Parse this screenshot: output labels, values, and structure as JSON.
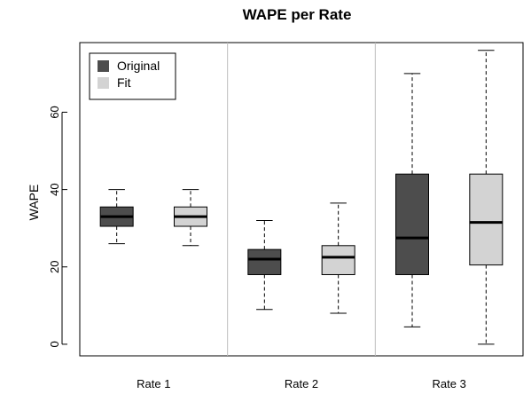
{
  "chart_data": {
    "type": "boxplot",
    "title": "WAPE per Rate",
    "ylabel": "WAPE",
    "xlabel": "",
    "categories": [
      "Rate 1",
      "Rate 2",
      "Rate 3"
    ],
    "yticks": [
      0,
      20,
      40,
      60
    ],
    "ylim": [
      -3,
      78
    ],
    "grid": false,
    "legend_position": "top-left",
    "series": [
      {
        "name": "Original",
        "color": "#4d4d4d",
        "boxes": [
          {
            "min": 26,
            "q1": 30.5,
            "median": 33,
            "q3": 35.5,
            "max": 40
          },
          {
            "min": 9,
            "q1": 18,
            "median": 22,
            "q3": 24.5,
            "max": 32
          },
          {
            "min": 4.5,
            "q1": 18,
            "median": 27.5,
            "q3": 44,
            "max": 70
          }
        ]
      },
      {
        "name": "Fit",
        "color": "#d3d3d3",
        "boxes": [
          {
            "min": 25.5,
            "q1": 30.5,
            "median": 33,
            "q3": 35.5,
            "max": 40
          },
          {
            "min": 8,
            "q1": 18,
            "median": 22.5,
            "q3": 25.5,
            "max": 36.5
          },
          {
            "min": 0,
            "q1": 20.5,
            "median": 31.5,
            "q3": 44,
            "max": 76
          }
        ]
      }
    ]
  }
}
